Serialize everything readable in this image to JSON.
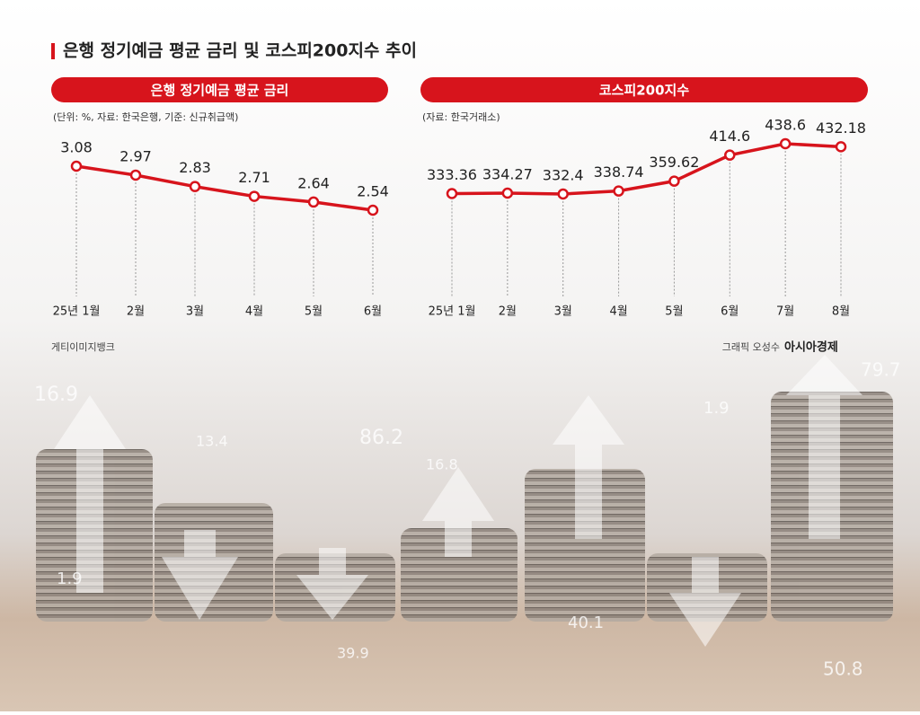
{
  "title": "은행 정기예금 평균 금리 및 코스피200지수 추이",
  "chart_data": [
    {
      "type": "line",
      "title": "은행 정기예금 평균 금리",
      "note": "(단위: %, 자료: 한국은행, 기준: 신규취급액)",
      "categories": [
        "25년 1월",
        "2월",
        "3월",
        "4월",
        "5월",
        "6월"
      ],
      "values": [
        3.08,
        2.97,
        2.83,
        2.71,
        2.64,
        2.54
      ],
      "color": "#d7141c"
    },
    {
      "type": "line",
      "title": "코스피200지수",
      "note": "(자료: 한국거래소)",
      "categories": [
        "25년 1월",
        "2월",
        "3월",
        "4월",
        "5월",
        "6월",
        "7월",
        "8월"
      ],
      "values": [
        333.36,
        334.27,
        332.4,
        338.74,
        359.62,
        414.6,
        438.6,
        432.18
      ],
      "color": "#d7141c"
    }
  ],
  "photo_credit": "게티이미지뱅크",
  "graphic_credit": "그래픽 오성수",
  "brand": "아시아경제",
  "background_numbers": [
    "16.9",
    "13.4",
    "86.2",
    "16.8",
    "1.9",
    "79.7",
    "1.9",
    "39.9",
    "40.1",
    "50.8"
  ]
}
